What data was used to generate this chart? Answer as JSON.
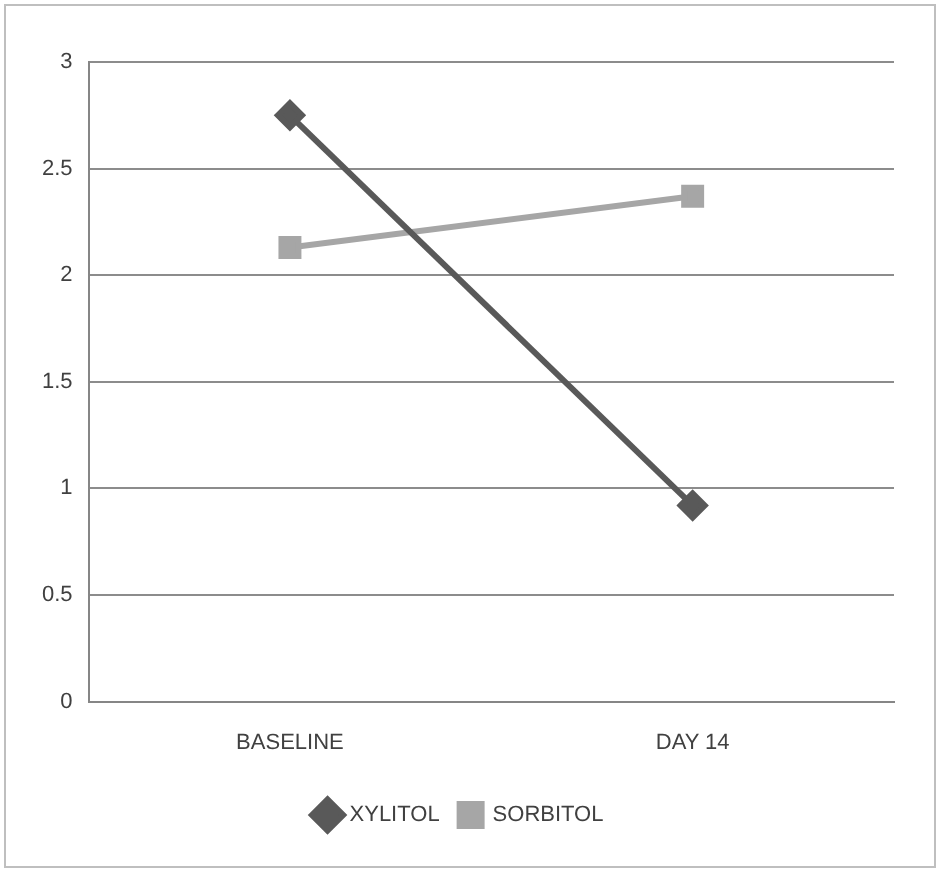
{
  "chart_data": {
    "type": "line",
    "categories": [
      "BASELINE",
      "DAY 14"
    ],
    "series": [
      {
        "name": "XYLITOL",
        "color": "#595959",
        "values": [
          2.75,
          0.92
        ],
        "marker": "diamond"
      },
      {
        "name": "SORBITOL",
        "color": "#a6a6a6",
        "values": [
          2.13,
          2.37
        ],
        "marker": "square"
      }
    ],
    "ylim": [
      0,
      3
    ],
    "yticks": [
      0,
      0.5,
      1,
      1.5,
      2,
      2.5,
      3
    ],
    "grid": "y",
    "legend": "bottom",
    "line_style": "solid"
  }
}
